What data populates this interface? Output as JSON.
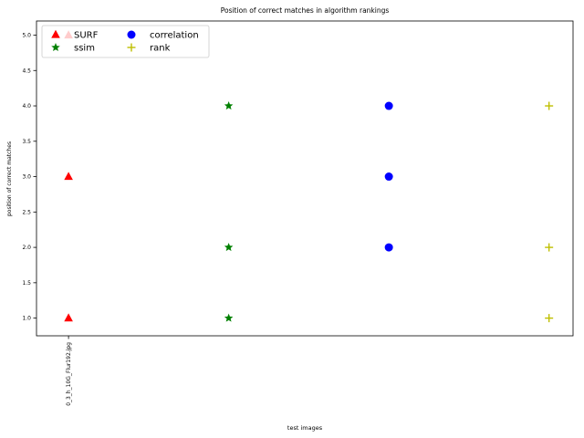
{
  "chart_data": {
    "type": "scatter",
    "title": "Position of correct matches in algorithm rankings",
    "xlabel": "test images",
    "ylabel": "position of correct matches",
    "categories": [
      "0_3_h_10G_Flur192.jpg"
    ],
    "x_range": [
      -0.2,
      3.15
    ],
    "ylim": [
      0.75,
      5.2
    ],
    "yticks": [
      "1.0",
      "1.5",
      "2.0",
      "2.5",
      "3.0",
      "3.5",
      "4.0",
      "4.5",
      "5.0"
    ],
    "legend_position": "top-left",
    "grid": false,
    "series": [
      {
        "name": "SURF",
        "marker": "triangle",
        "color": "#ff0000",
        "points": [
          [
            0,
            5
          ],
          [
            0,
            3
          ],
          [
            0,
            1
          ]
        ]
      },
      {
        "name": "ssim",
        "marker": "star",
        "color": "#008000",
        "points": [
          [
            1,
            4
          ],
          [
            1,
            2
          ],
          [
            1,
            1
          ]
        ]
      },
      {
        "name": "correlation",
        "marker": "circle",
        "color": "#0000ff",
        "points": [
          [
            2,
            4
          ],
          [
            2,
            3
          ],
          [
            2,
            2
          ]
        ]
      },
      {
        "name": "rank",
        "marker": "plus",
        "color": "#bfbf00",
        "points": [
          [
            3,
            4
          ],
          [
            3,
            2
          ],
          [
            3,
            1
          ]
        ]
      }
    ]
  }
}
